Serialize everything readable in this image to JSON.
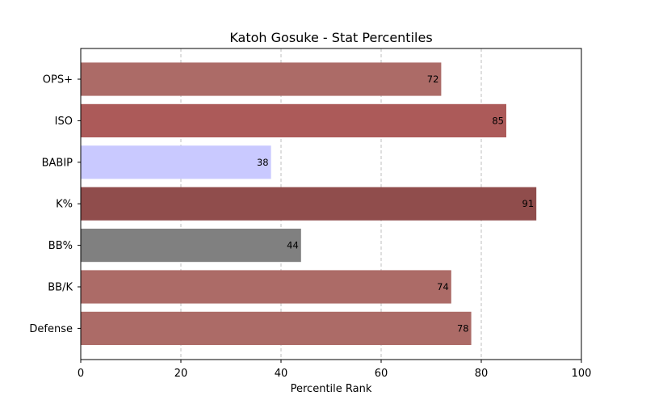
{
  "chart_data": {
    "type": "bar",
    "orientation": "horizontal",
    "title": "Katoh Gosuke - Stat Percentiles",
    "xlabel": "Percentile Rank",
    "ylabel": "",
    "xlim": [
      0,
      100
    ],
    "xticks": [
      0,
      20,
      40,
      60,
      80,
      100
    ],
    "xtick_labels": [
      "0",
      "20",
      "40",
      "60",
      "80",
      "100"
    ],
    "grid": "x-axis dashed",
    "categories": [
      "OPS+",
      "ISO",
      "BABIP",
      "K%",
      "BB%",
      "BB/K",
      "Defense"
    ],
    "values": [
      72,
      85,
      38,
      91,
      44,
      74,
      78
    ],
    "data_labels": [
      "72",
      "85",
      "38",
      "91",
      "44",
      "74",
      "78"
    ],
    "colors": [
      "#ac6b67",
      "#ac5a59",
      "#c9c9ff",
      "#904d4c",
      "#808080",
      "#ac6b67",
      "#ac6b67"
    ]
  }
}
